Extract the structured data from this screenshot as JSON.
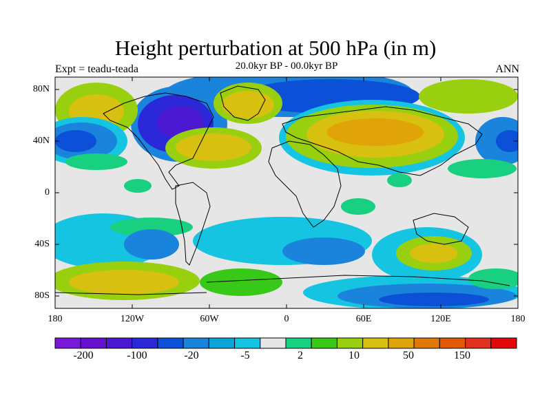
{
  "title": "Height perturbation at 500 hPa (in m)",
  "subtitle": "20.0kyr BP - 00.0kyr BP",
  "experiment": "Expt = teadu-teada",
  "season": "ANN",
  "latitude_ticks": [
    "80N",
    "40N",
    "0",
    "40S",
    "80S"
  ],
  "longitude_ticks": [
    "180",
    "120W",
    "60W",
    "0",
    "60E",
    "120E",
    "180"
  ],
  "colorbar": {
    "colors": [
      "#7a18d8",
      "#6610d0",
      "#4a18d0",
      "#2a28d8",
      "#0c50d8",
      "#1a84dc",
      "#0aa4d8",
      "#14c4e0",
      "#e6e6e6",
      "#18d080",
      "#38c818",
      "#98d010",
      "#d8c010",
      "#e0a408",
      "#e07804",
      "#e05a08",
      "#e03020",
      "#e00808"
    ],
    "labels": [
      "-200",
      "-100",
      "-20",
      "-5",
      "2",
      "10",
      "50",
      "150"
    ]
  },
  "map_features": {
    "background_color": "#e6e6e6",
    "land_outline_color": "#000000"
  }
}
